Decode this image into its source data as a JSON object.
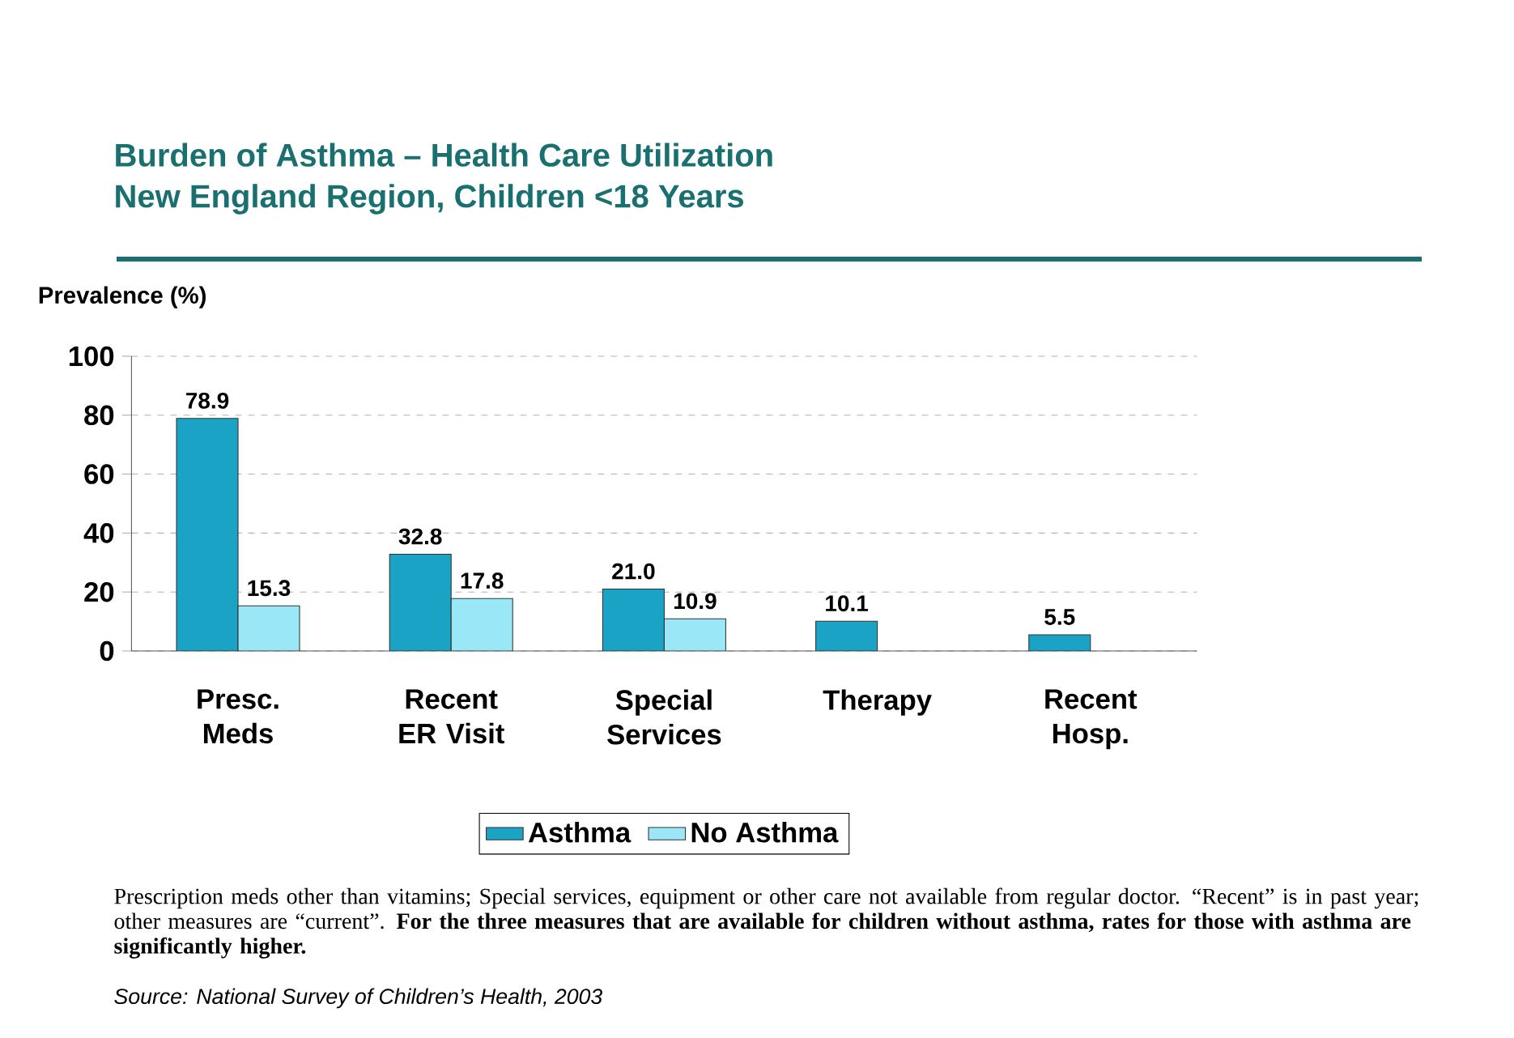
{
  "chart_data": {
    "type": "bar",
    "title": "Burden of Asthma – Health Care Utilization",
    "subtitle": "New England Region, Children <18 Years",
    "ylabel": "Prevalence (%)",
    "categories": [
      "Presc. Meds",
      "Recent ER Visit",
      "Special Services",
      "Therapy",
      "Recent Hosp."
    ],
    "series": [
      {
        "name": "Asthma",
        "color": "#1ba3c6",
        "values": [
          78.9,
          32.8,
          21.0,
          10.1,
          5.5
        ],
        "value_labels": [
          "78.9",
          "32.8",
          "21.0",
          "10.1",
          "5.5"
        ]
      },
      {
        "name": "No Asthma",
        "color": "#9ae8f7",
        "values": [
          15.3,
          17.8,
          10.9,
          null,
          null
        ],
        "value_labels": [
          "15.3",
          "17.8",
          "10.9",
          null,
          null
        ]
      }
    ],
    "ylim": [
      0,
      100
    ],
    "yticks": [
      0,
      20,
      40,
      60,
      80,
      100
    ],
    "grid": "y",
    "legend": "bottom",
    "annotations": [
      "Prescription meds other than vitamins; Special services, equipment or other care not available from regular doctor. “Recent” is in past year; other measures are “current”.  **For the three measures that are available for children without asthma, rates for those with asthma are significantly higher.**",
      "Source: National Survey of Children’s Health, 2003"
    ]
  }
}
